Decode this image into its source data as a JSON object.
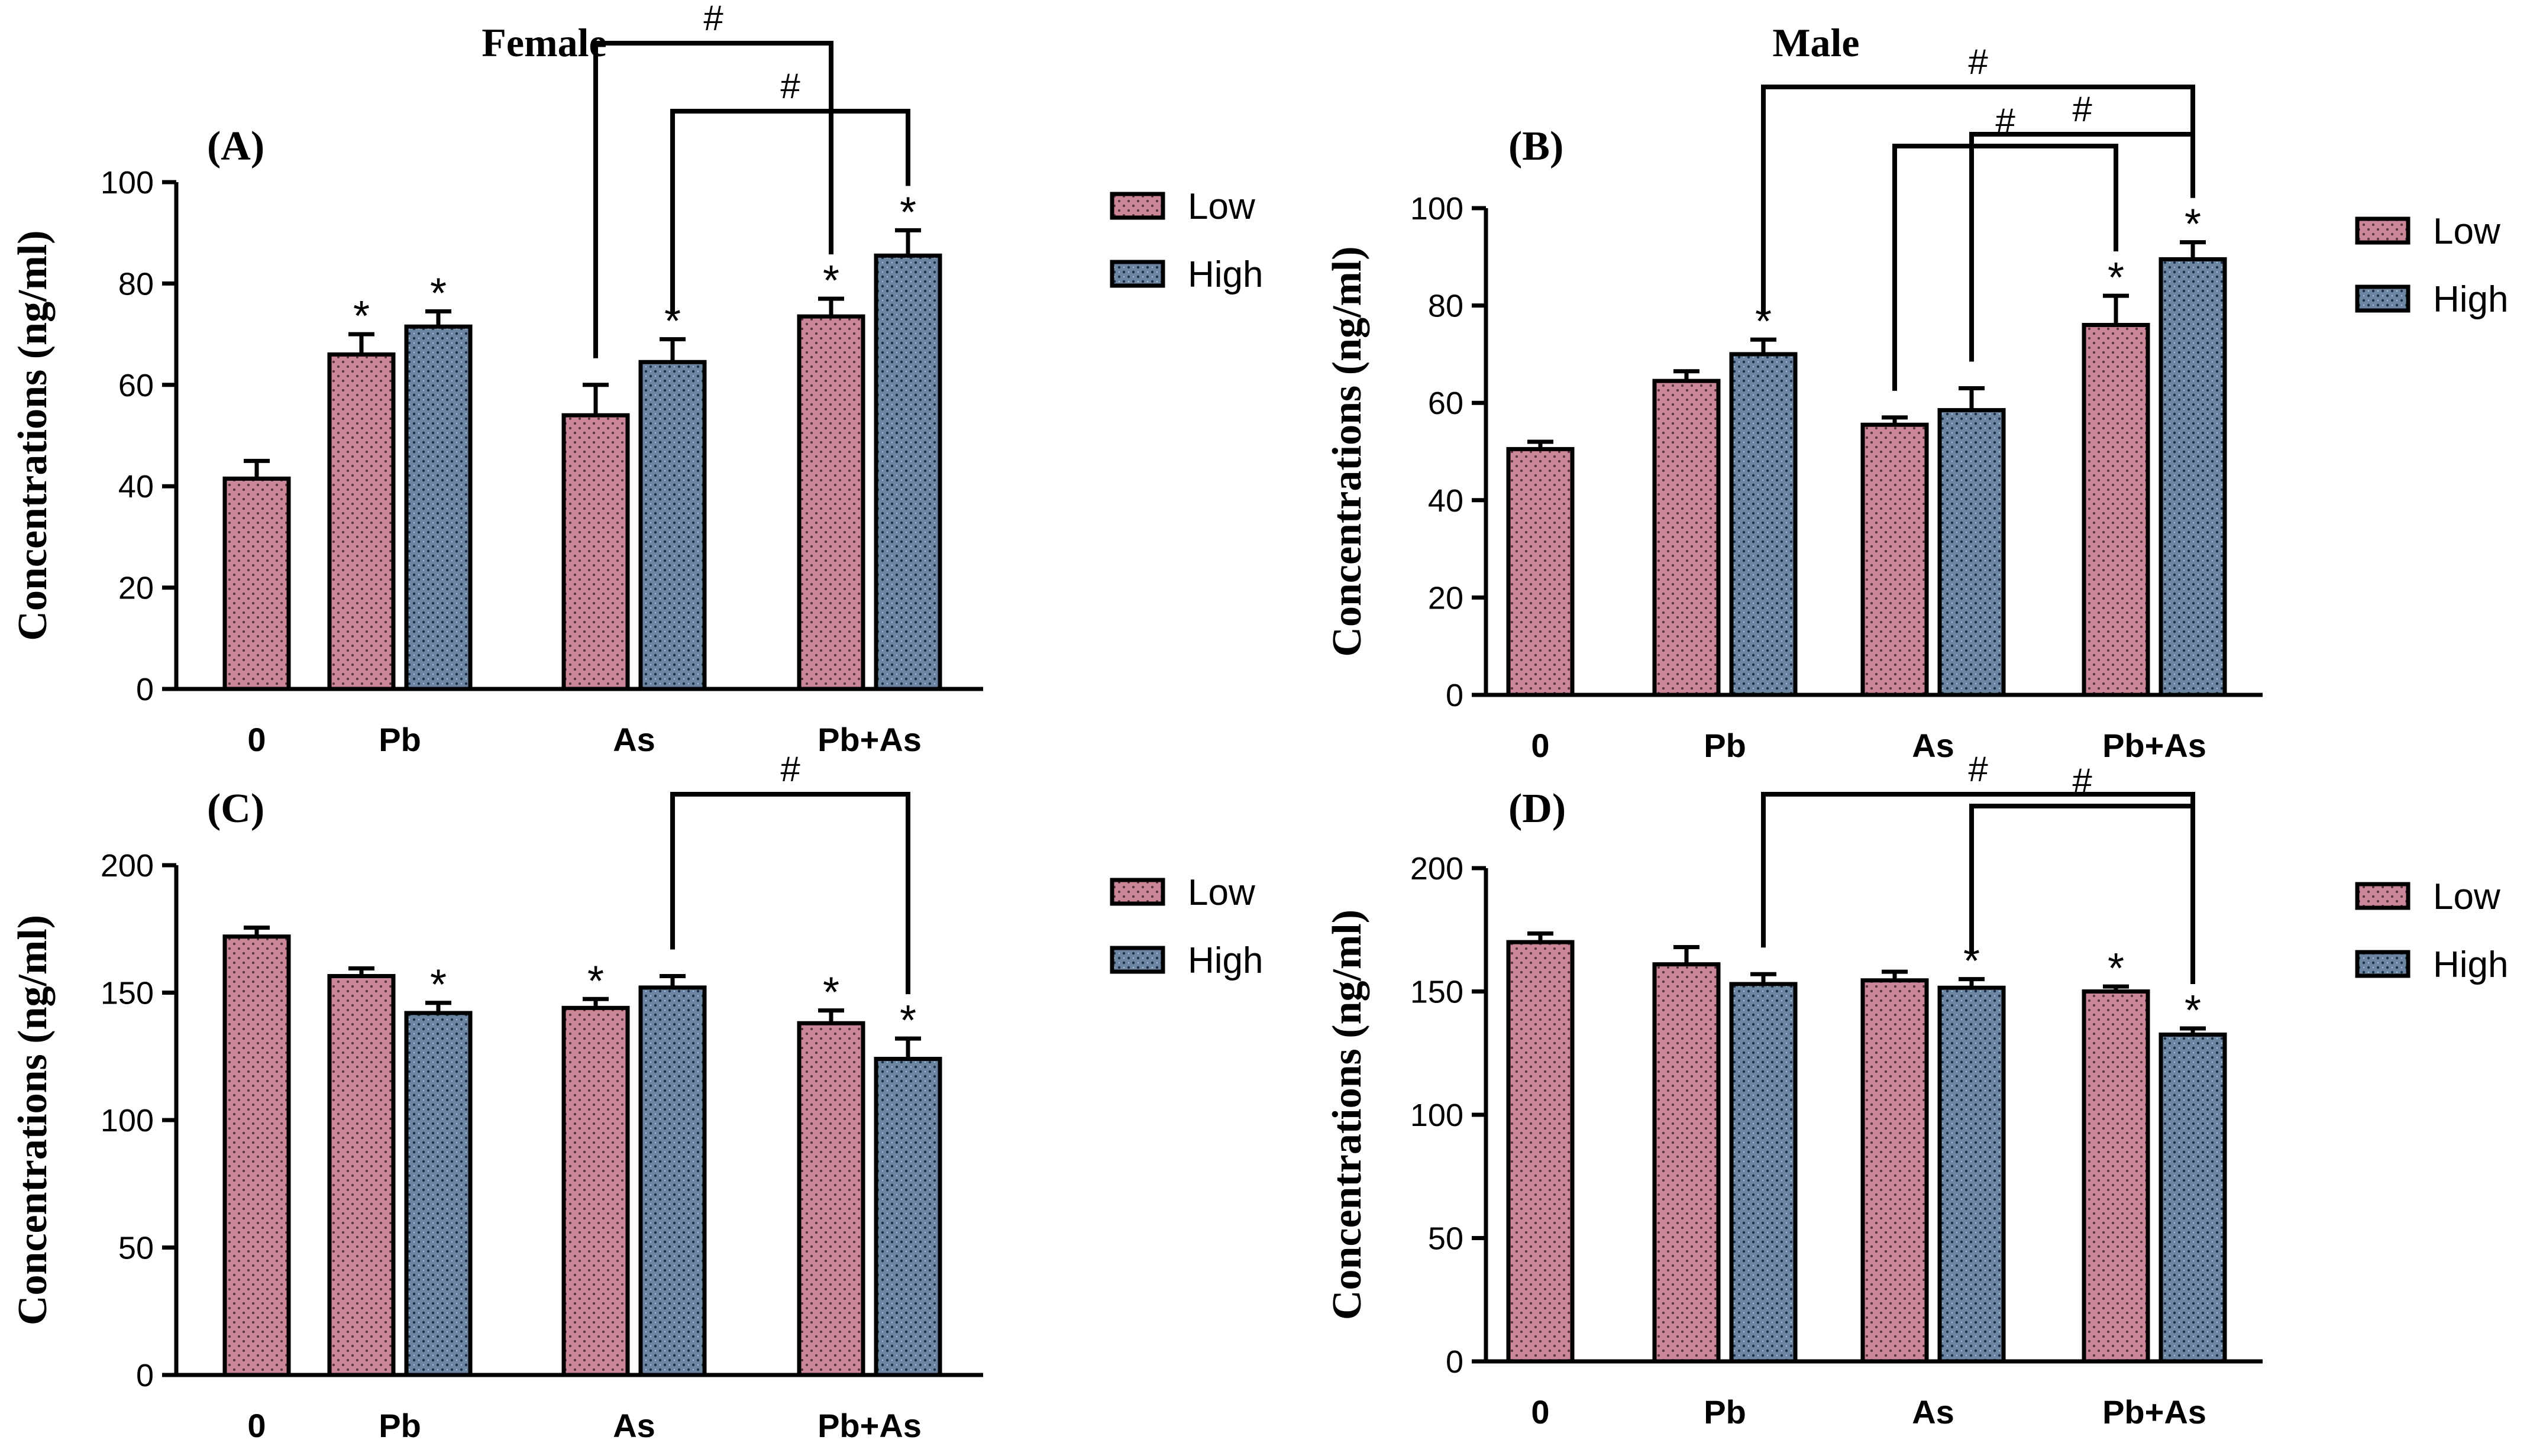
{
  "figure": {
    "column_titles": [
      "Female",
      "Male"
    ],
    "colors": {
      "low": "#c98798",
      "high": "#6b85a2",
      "stroke": "#000000"
    },
    "legend_icons": [
      "pink-dotted-swatch-icon",
      "blue-dotted-swatch-icon"
    ]
  },
  "chart_data": [
    {
      "type": "bar",
      "panel_label": "(A)",
      "column": "Female",
      "categories": [
        "0",
        "Pb",
        "As",
        "Pb+As"
      ],
      "series": [
        {
          "name": "Low",
          "values": [
            41.5,
            66,
            54,
            73.5
          ],
          "errors": [
            3.5,
            4,
            6,
            3.5
          ],
          "significance": [
            "",
            "*",
            "",
            "*"
          ]
        },
        {
          "name": "High",
          "values": [
            null,
            71.5,
            64.5,
            85.5
          ],
          "errors": [
            null,
            3,
            4.5,
            5
          ],
          "significance": [
            "",
            "*",
            "*",
            "*"
          ]
        }
      ],
      "ylabel": "Concentrations (ng/ml)",
      "ylim": [
        0,
        100
      ],
      "yticks": [
        0,
        20,
        40,
        60,
        80,
        100
      ],
      "comparisons": [
        {
          "from": {
            "category": "As",
            "series": "Low"
          },
          "to": {
            "category": "Pb+As",
            "series": "Low"
          },
          "label": "#"
        },
        {
          "from": {
            "category": "As",
            "series": "High"
          },
          "to": {
            "category": "Pb+As",
            "series": "High"
          },
          "label": "#"
        }
      ]
    },
    {
      "type": "bar",
      "panel_label": "(B)",
      "column": "Male",
      "categories": [
        "0",
        "Pb",
        "As",
        "Pb+As"
      ],
      "series": [
        {
          "name": "Low",
          "values": [
            50.5,
            64.5,
            55.5,
            76
          ],
          "errors": [
            1.5,
            2,
            1.5,
            6
          ],
          "significance": [
            "",
            "",
            "",
            "*"
          ]
        },
        {
          "name": "High",
          "values": [
            null,
            70,
            58.5,
            89.5
          ],
          "errors": [
            null,
            3,
            4.5,
            3.5
          ],
          "significance": [
            "",
            "*",
            "",
            "*"
          ]
        }
      ],
      "ylabel": "Concentrations (ng/ml)",
      "ylim": [
        0,
        100
      ],
      "yticks": [
        0,
        20,
        40,
        60,
        80,
        100
      ],
      "comparisons": [
        {
          "from": {
            "category": "Pb",
            "series": "High"
          },
          "to": {
            "category": "Pb+As",
            "series": "High"
          },
          "label": "#"
        },
        {
          "from": {
            "category": "As",
            "series": "High"
          },
          "to": {
            "category": "Pb+As",
            "series": "High"
          },
          "label": "#"
        },
        {
          "from": {
            "category": "As",
            "series": "Low"
          },
          "to": {
            "category": "Pb+As",
            "series": "Low"
          },
          "label": "#"
        }
      ]
    },
    {
      "type": "bar",
      "panel_label": "(C)",
      "column": "Female",
      "categories": [
        "0",
        "Pb",
        "As",
        "Pb+As"
      ],
      "series": [
        {
          "name": "Low",
          "values": [
            172,
            156.5,
            144,
            138
          ],
          "errors": [
            3.5,
            3,
            3.5,
            5
          ],
          "significance": [
            "",
            "",
            "*",
            "*"
          ]
        },
        {
          "name": "High",
          "values": [
            null,
            142,
            152,
            124
          ],
          "errors": [
            null,
            4,
            4.5,
            8
          ],
          "significance": [
            "",
            "*",
            "",
            "*"
          ]
        }
      ],
      "ylabel": "Concentrations (ng/ml)",
      "ylim": [
        0,
        200
      ],
      "yticks": [
        0,
        50,
        100,
        150,
        200
      ],
      "comparisons": [
        {
          "from": {
            "category": "As",
            "series": "High"
          },
          "to": {
            "category": "Pb+As",
            "series": "High"
          },
          "label": "#"
        }
      ]
    },
    {
      "type": "bar",
      "panel_label": "(D)",
      "column": "Male",
      "categories": [
        "0",
        "Pb",
        "As",
        "Pb+As"
      ],
      "series": [
        {
          "name": "Low",
          "values": [
            170,
            161,
            154.5,
            150
          ],
          "errors": [
            3.5,
            7,
            3.5,
            2
          ],
          "significance": [
            "",
            "",
            "",
            "*"
          ]
        },
        {
          "name": "High",
          "values": [
            null,
            153,
            151.5,
            132.5
          ],
          "errors": [
            null,
            4,
            3.5,
            2.5
          ],
          "significance": [
            "",
            "",
            "*",
            "*"
          ]
        }
      ],
      "ylabel": "Concentrations (ng/ml)",
      "ylim": [
        0,
        200
      ],
      "yticks": [
        0,
        50,
        100,
        150,
        200
      ],
      "comparisons": [
        {
          "from": {
            "category": "Pb",
            "series": "High"
          },
          "to": {
            "category": "Pb+As",
            "series": "High"
          },
          "label": "#"
        },
        {
          "from": {
            "category": "As",
            "series": "High"
          },
          "to": {
            "category": "Pb+As",
            "series": "High"
          },
          "label": "#"
        }
      ]
    }
  ]
}
